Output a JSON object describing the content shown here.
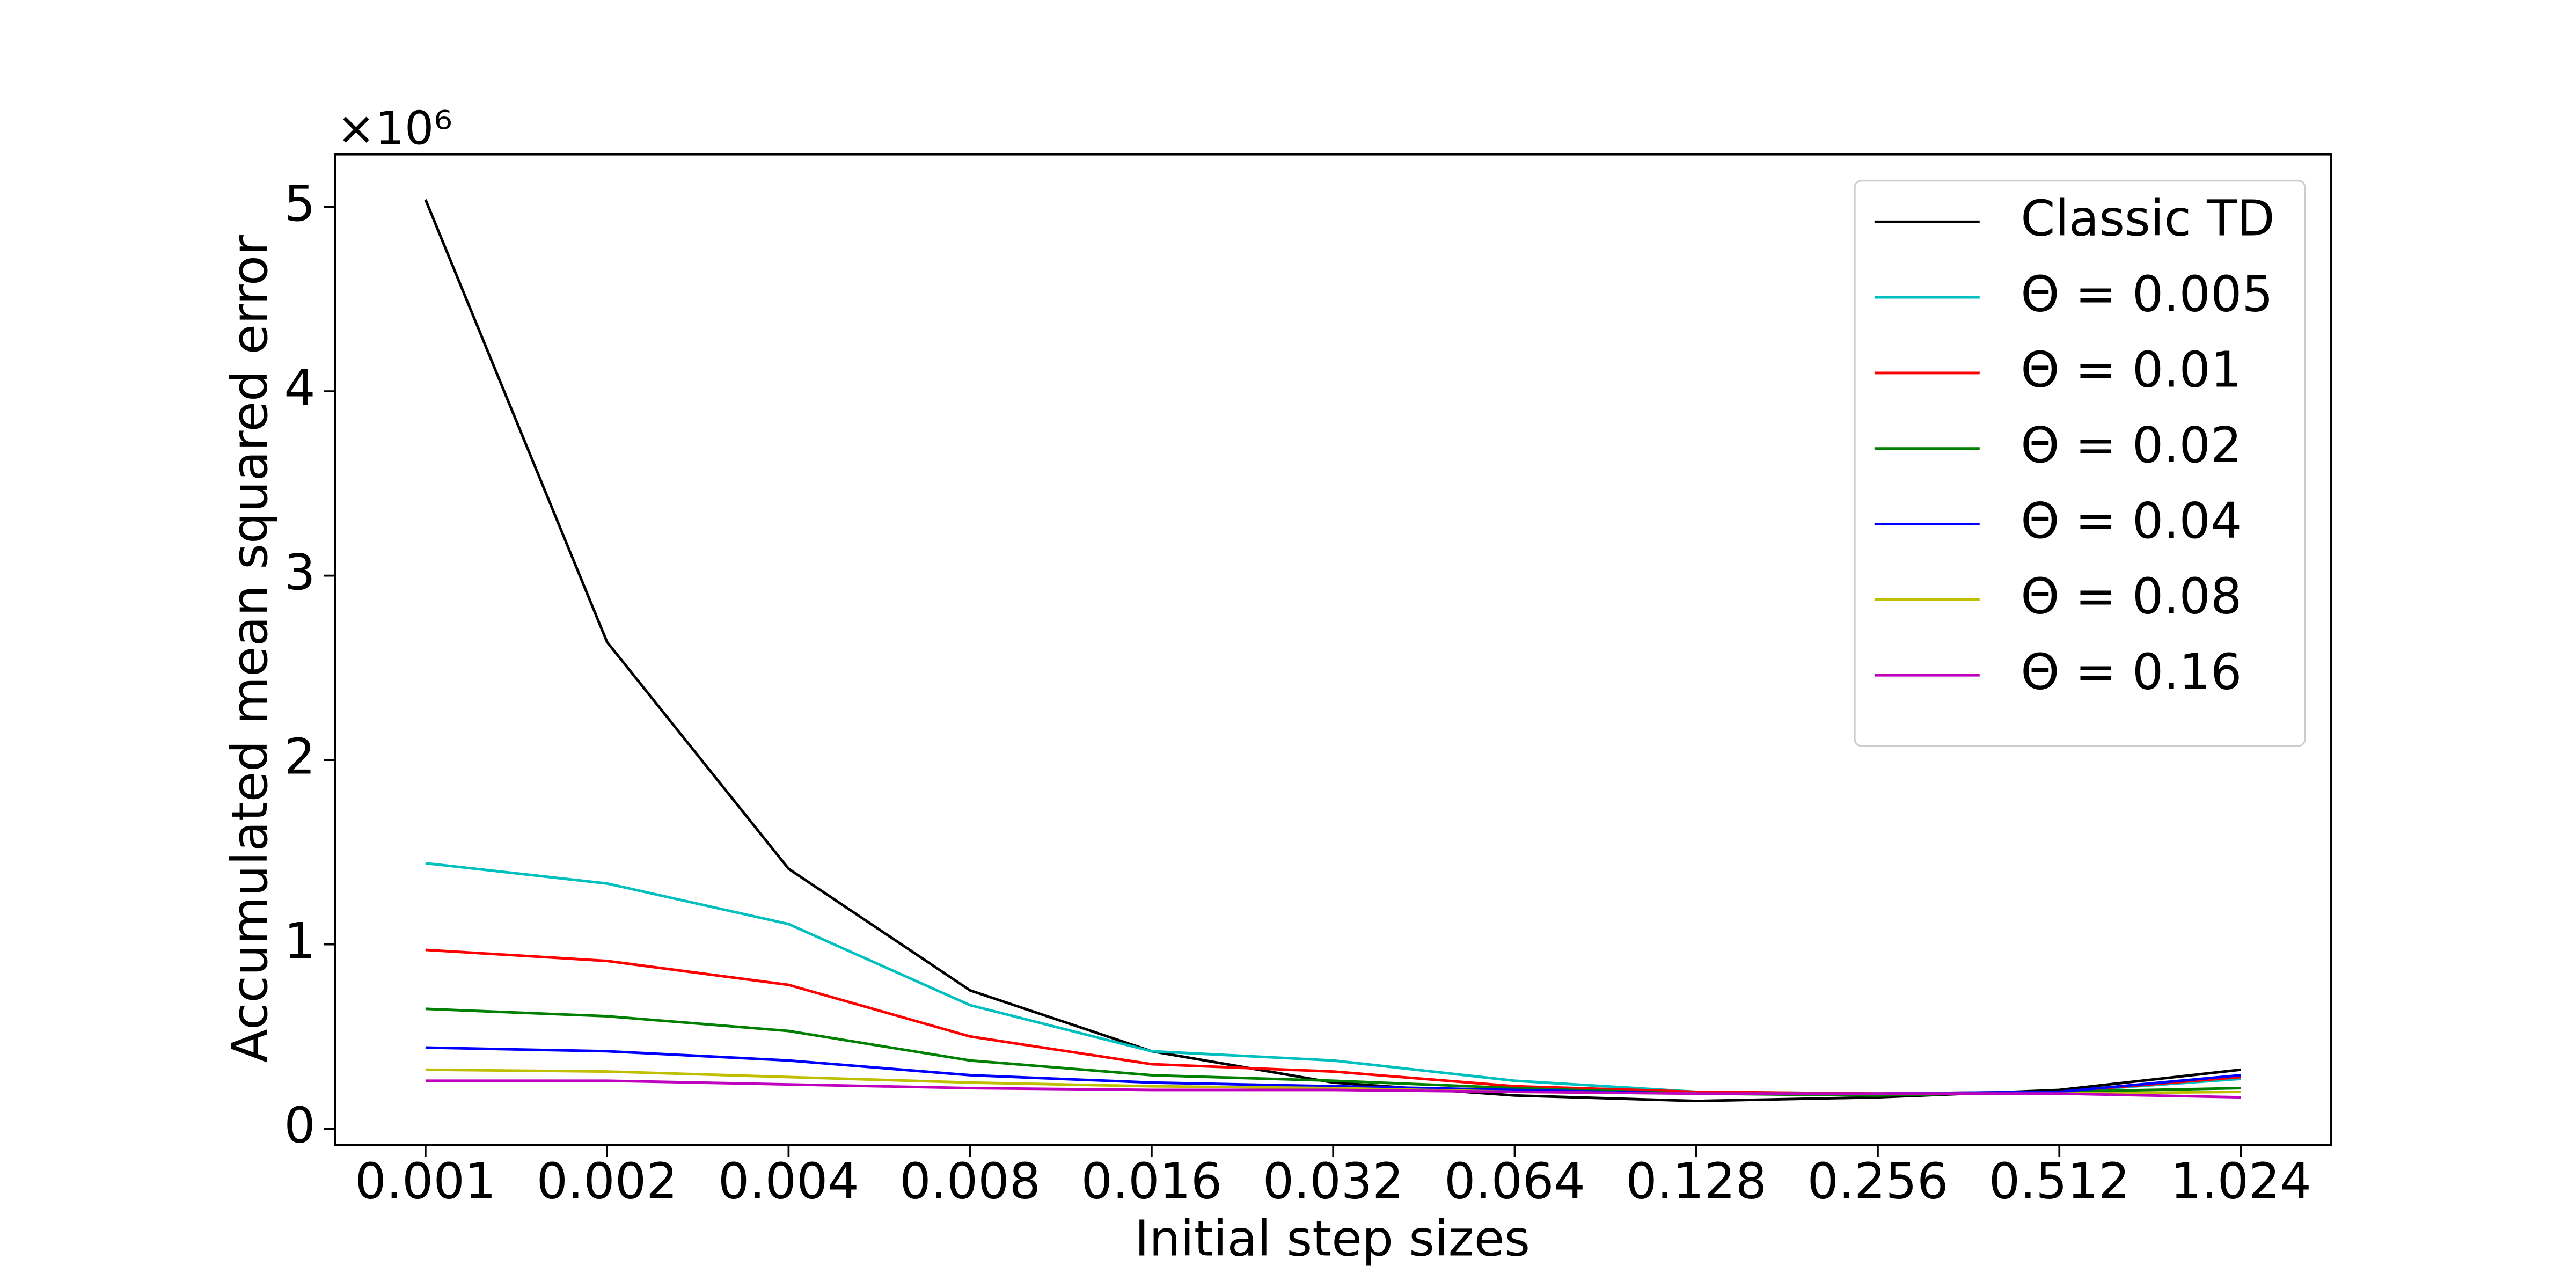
{
  "chart_data": {
    "type": "line",
    "x_label": "Initial step sizes",
    "y_label": "Accumulated mean squared error",
    "y_multiplier": "×10⁶",
    "categories": [
      "0.001",
      "0.002",
      "0.004",
      "0.008",
      "0.016",
      "0.032",
      "0.064",
      "0.128",
      "0.256",
      "0.512",
      "1.024"
    ],
    "series": [
      {
        "name": "Classic TD",
        "color": "#000000",
        "values": [
          5.04,
          2.64,
          1.41,
          0.75,
          0.42,
          0.25,
          0.18,
          0.15,
          0.17,
          0.21,
          0.32
        ]
      },
      {
        "name": "Θ = 0.005",
        "color": "#00bfbf",
        "values": [
          1.44,
          1.33,
          1.11,
          0.67,
          0.42,
          0.37,
          0.26,
          0.2,
          0.19,
          0.2,
          0.27
        ]
      },
      {
        "name": "Θ = 0.01",
        "color": "#ff0000",
        "values": [
          0.97,
          0.91,
          0.78,
          0.5,
          0.35,
          0.31,
          0.23,
          0.2,
          0.19,
          0.2,
          0.28
        ]
      },
      {
        "name": "Θ = 0.02",
        "color": "#008000",
        "values": [
          0.65,
          0.61,
          0.53,
          0.37,
          0.29,
          0.26,
          0.22,
          0.19,
          0.18,
          0.2,
          0.22
        ]
      },
      {
        "name": "Θ = 0.04",
        "color": "#0000ff",
        "values": [
          0.44,
          0.42,
          0.37,
          0.29,
          0.25,
          0.23,
          0.21,
          0.19,
          0.19,
          0.2,
          0.29
        ]
      },
      {
        "name": "Θ = 0.08",
        "color": "#bfbf00",
        "values": [
          0.32,
          0.31,
          0.28,
          0.25,
          0.23,
          0.22,
          0.2,
          0.19,
          0.19,
          0.19,
          0.2
        ]
      },
      {
        "name": "Θ = 0.16",
        "color": "#bf00bf",
        "values": [
          0.26,
          0.26,
          0.24,
          0.22,
          0.21,
          0.21,
          0.2,
          0.19,
          0.19,
          0.19,
          0.17
        ]
      }
    ],
    "ylim": [
      -0.089,
      5.285
    ],
    "yticks": [
      0,
      1,
      2,
      3,
      4,
      5
    ],
    "grid": false,
    "legend": "upper right"
  }
}
